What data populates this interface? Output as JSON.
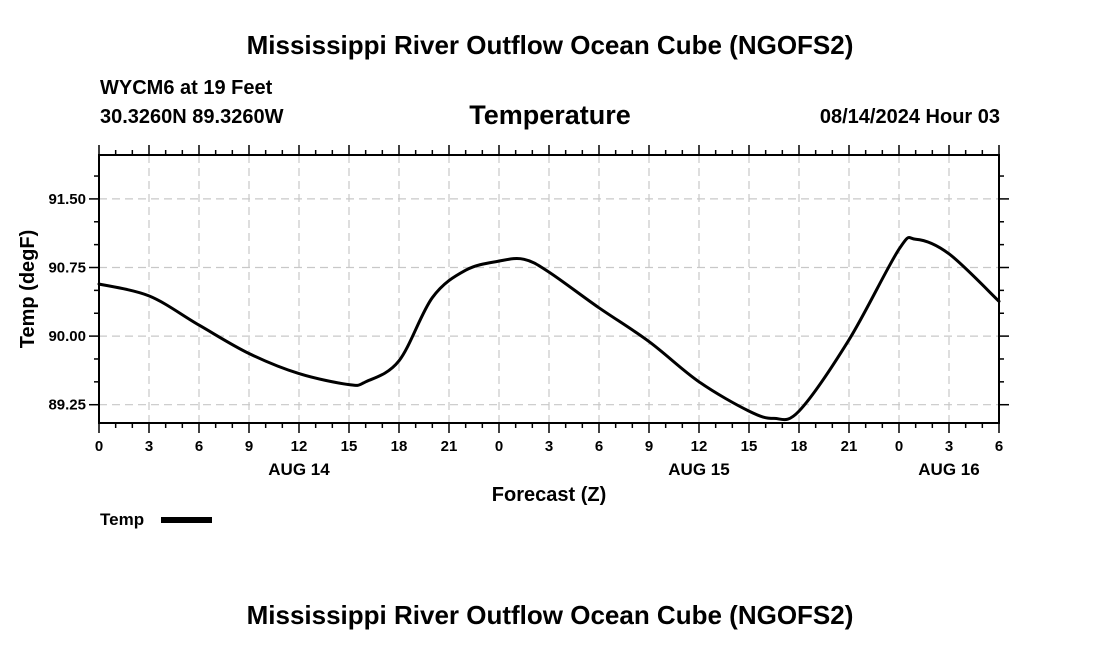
{
  "header": {
    "title": "Mississippi River Outflow Ocean Cube (NGOFS2)",
    "station": "WYCM6 at 19 Feet",
    "coords": "30.3260N  89.3260W",
    "subtitle": "Temperature",
    "datetime": "08/14/2024 Hour 03"
  },
  "footer": {
    "title": "Mississippi River Outflow Ocean Cube (NGOFS2)"
  },
  "legend": {
    "label": "Temp"
  },
  "colors": {
    "line": "#000000",
    "grid": "#c8c8c8",
    "background": "#ffffff"
  },
  "chart_data": {
    "type": "line",
    "xlabel": "Forecast (Z)",
    "ylabel": "Temp (degF)",
    "xlim": [
      0,
      54
    ],
    "ylim": [
      89.05,
      91.98
    ],
    "x_ticks": [
      0,
      3,
      6,
      9,
      12,
      15,
      18,
      21,
      24,
      27,
      30,
      33,
      36,
      39,
      42,
      45,
      48,
      51,
      54
    ],
    "x_tick_labels": [
      "0",
      "3",
      "6",
      "9",
      "12",
      "15",
      "18",
      "21",
      "0",
      "3",
      "6",
      "9",
      "12",
      "15",
      "18",
      "21",
      "0",
      "3",
      "6"
    ],
    "x_minor_step": 1,
    "y_ticks": [
      89.25,
      90.0,
      90.75,
      91.5
    ],
    "y_tick_labels": [
      "89.25",
      "90.00",
      "90.75",
      "91.50"
    ],
    "day_labels": [
      {
        "x": 12,
        "label": "AUG 14"
      },
      {
        "x": 36,
        "label": "AUG 15"
      },
      {
        "x": 51,
        "label": "AUG 16"
      }
    ],
    "grid": true,
    "legend_position": "bottom-left",
    "series": [
      {
        "name": "Temp",
        "x": [
          0,
          3,
          6,
          9,
          12,
          15,
          16,
          18,
          20,
          22,
          24,
          25.5,
          27,
          30,
          33,
          36,
          39,
          40.5,
          42,
          45,
          48,
          49,
          51,
          54
        ],
        "y": [
          90.57,
          90.44,
          90.12,
          89.81,
          89.59,
          89.47,
          89.5,
          89.73,
          90.42,
          90.72,
          90.82,
          90.84,
          90.7,
          90.31,
          89.94,
          89.5,
          89.18,
          89.1,
          89.18,
          89.96,
          90.95,
          91.06,
          90.9,
          90.38
        ]
      }
    ]
  }
}
